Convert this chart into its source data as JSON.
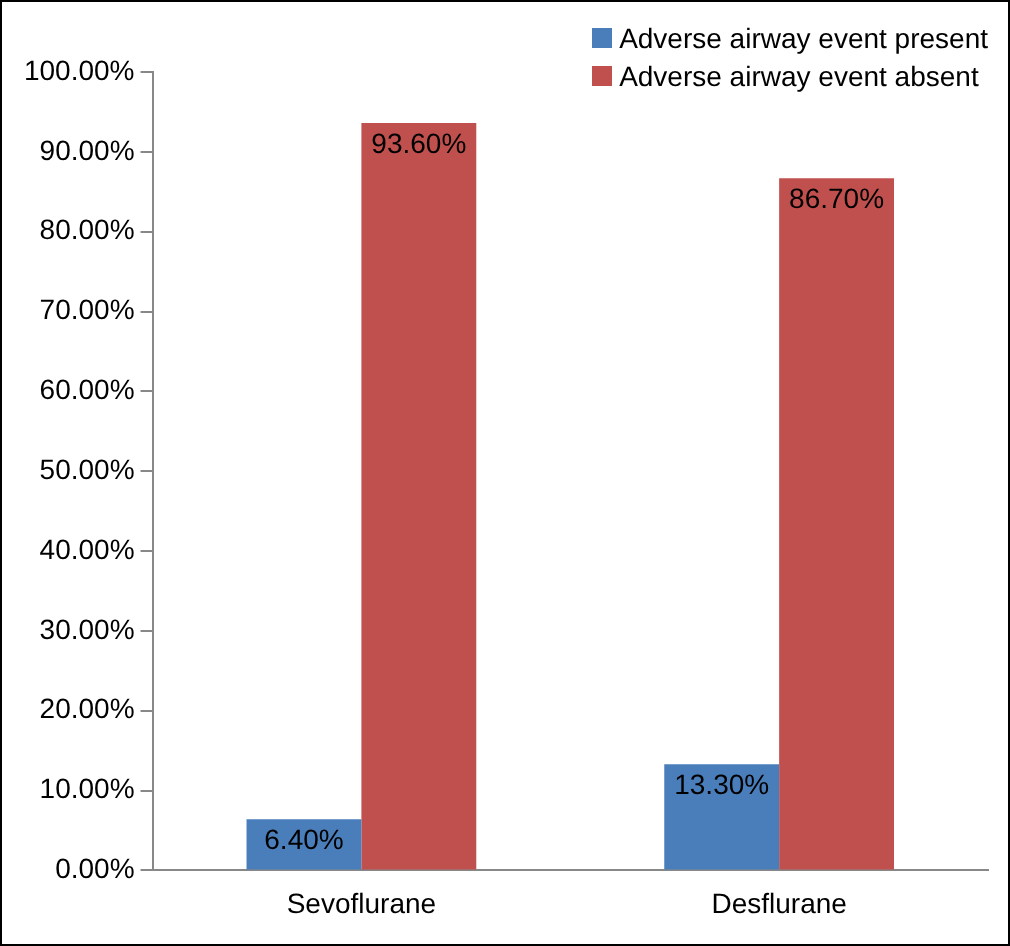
{
  "chart_data": {
    "type": "bar",
    "categories": [
      "Sevoflurane",
      "Desflurane"
    ],
    "series": [
      {
        "name": "Adverse airway event present",
        "color": "#4a7ebb",
        "values": [
          6.4,
          13.3
        ],
        "value_labels": [
          "6.40%",
          "13.30%"
        ]
      },
      {
        "name": "Adverse airway event absent",
        "color": "#c0504d",
        "values": [
          93.6,
          86.7
        ],
        "value_labels": [
          "93.60%",
          "86.70%"
        ]
      }
    ],
    "ylim": [
      0,
      100
    ],
    "yticks": [
      {
        "value": 0,
        "label": "0.00%"
      },
      {
        "value": 10,
        "label": "10.00%"
      },
      {
        "value": 20,
        "label": "20.00%"
      },
      {
        "value": 30,
        "label": "30.00%"
      },
      {
        "value": 40,
        "label": "40.00%"
      },
      {
        "value": 50,
        "label": "50.00%"
      },
      {
        "value": 60,
        "label": "60.00%"
      },
      {
        "value": 70,
        "label": "70.00%"
      },
      {
        "value": 80,
        "label": "80.00%"
      },
      {
        "value": 90,
        "label": "90.00%"
      },
      {
        "value": 100,
        "label": "100.00%"
      }
    ],
    "grid": false,
    "legend": "top right"
  }
}
